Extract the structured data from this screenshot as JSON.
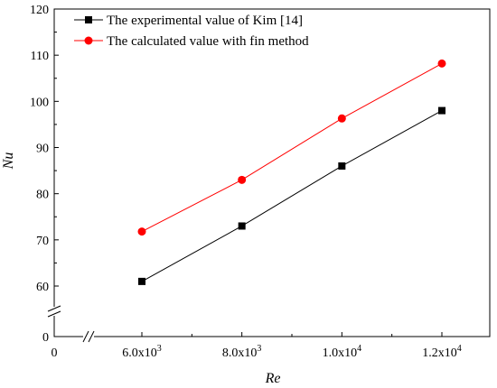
{
  "chart_data": {
    "type": "line",
    "xlabel": "Re",
    "ylabel": "Nu",
    "x": [
      6000,
      8000,
      10000,
      12000
    ],
    "x_tick_labels": [
      {
        "base": "6.0x10",
        "exp": "3"
      },
      {
        "base": "8.0x10",
        "exp": "3"
      },
      {
        "base": "1.0x10",
        "exp": "4"
      },
      {
        "base": "1.2x10",
        "exp": "4"
      }
    ],
    "x_origin_label": "0",
    "ylim": [
      55,
      120
    ],
    "y_ticks": [
      60,
      70,
      80,
      90,
      100,
      110,
      120
    ],
    "y_break_label": "0",
    "axis_breaks": true,
    "grid": false,
    "legend_position": "top-left",
    "series": [
      {
        "name": "The experimental value of Kim [14]",
        "marker": "square",
        "color": "#000000",
        "values": [
          61,
          73,
          86,
          98
        ]
      },
      {
        "name": "The calculated value with fin method",
        "marker": "circle",
        "color": "#ff0000",
        "values": [
          71.8,
          83,
          96.3,
          108.2
        ]
      }
    ]
  }
}
